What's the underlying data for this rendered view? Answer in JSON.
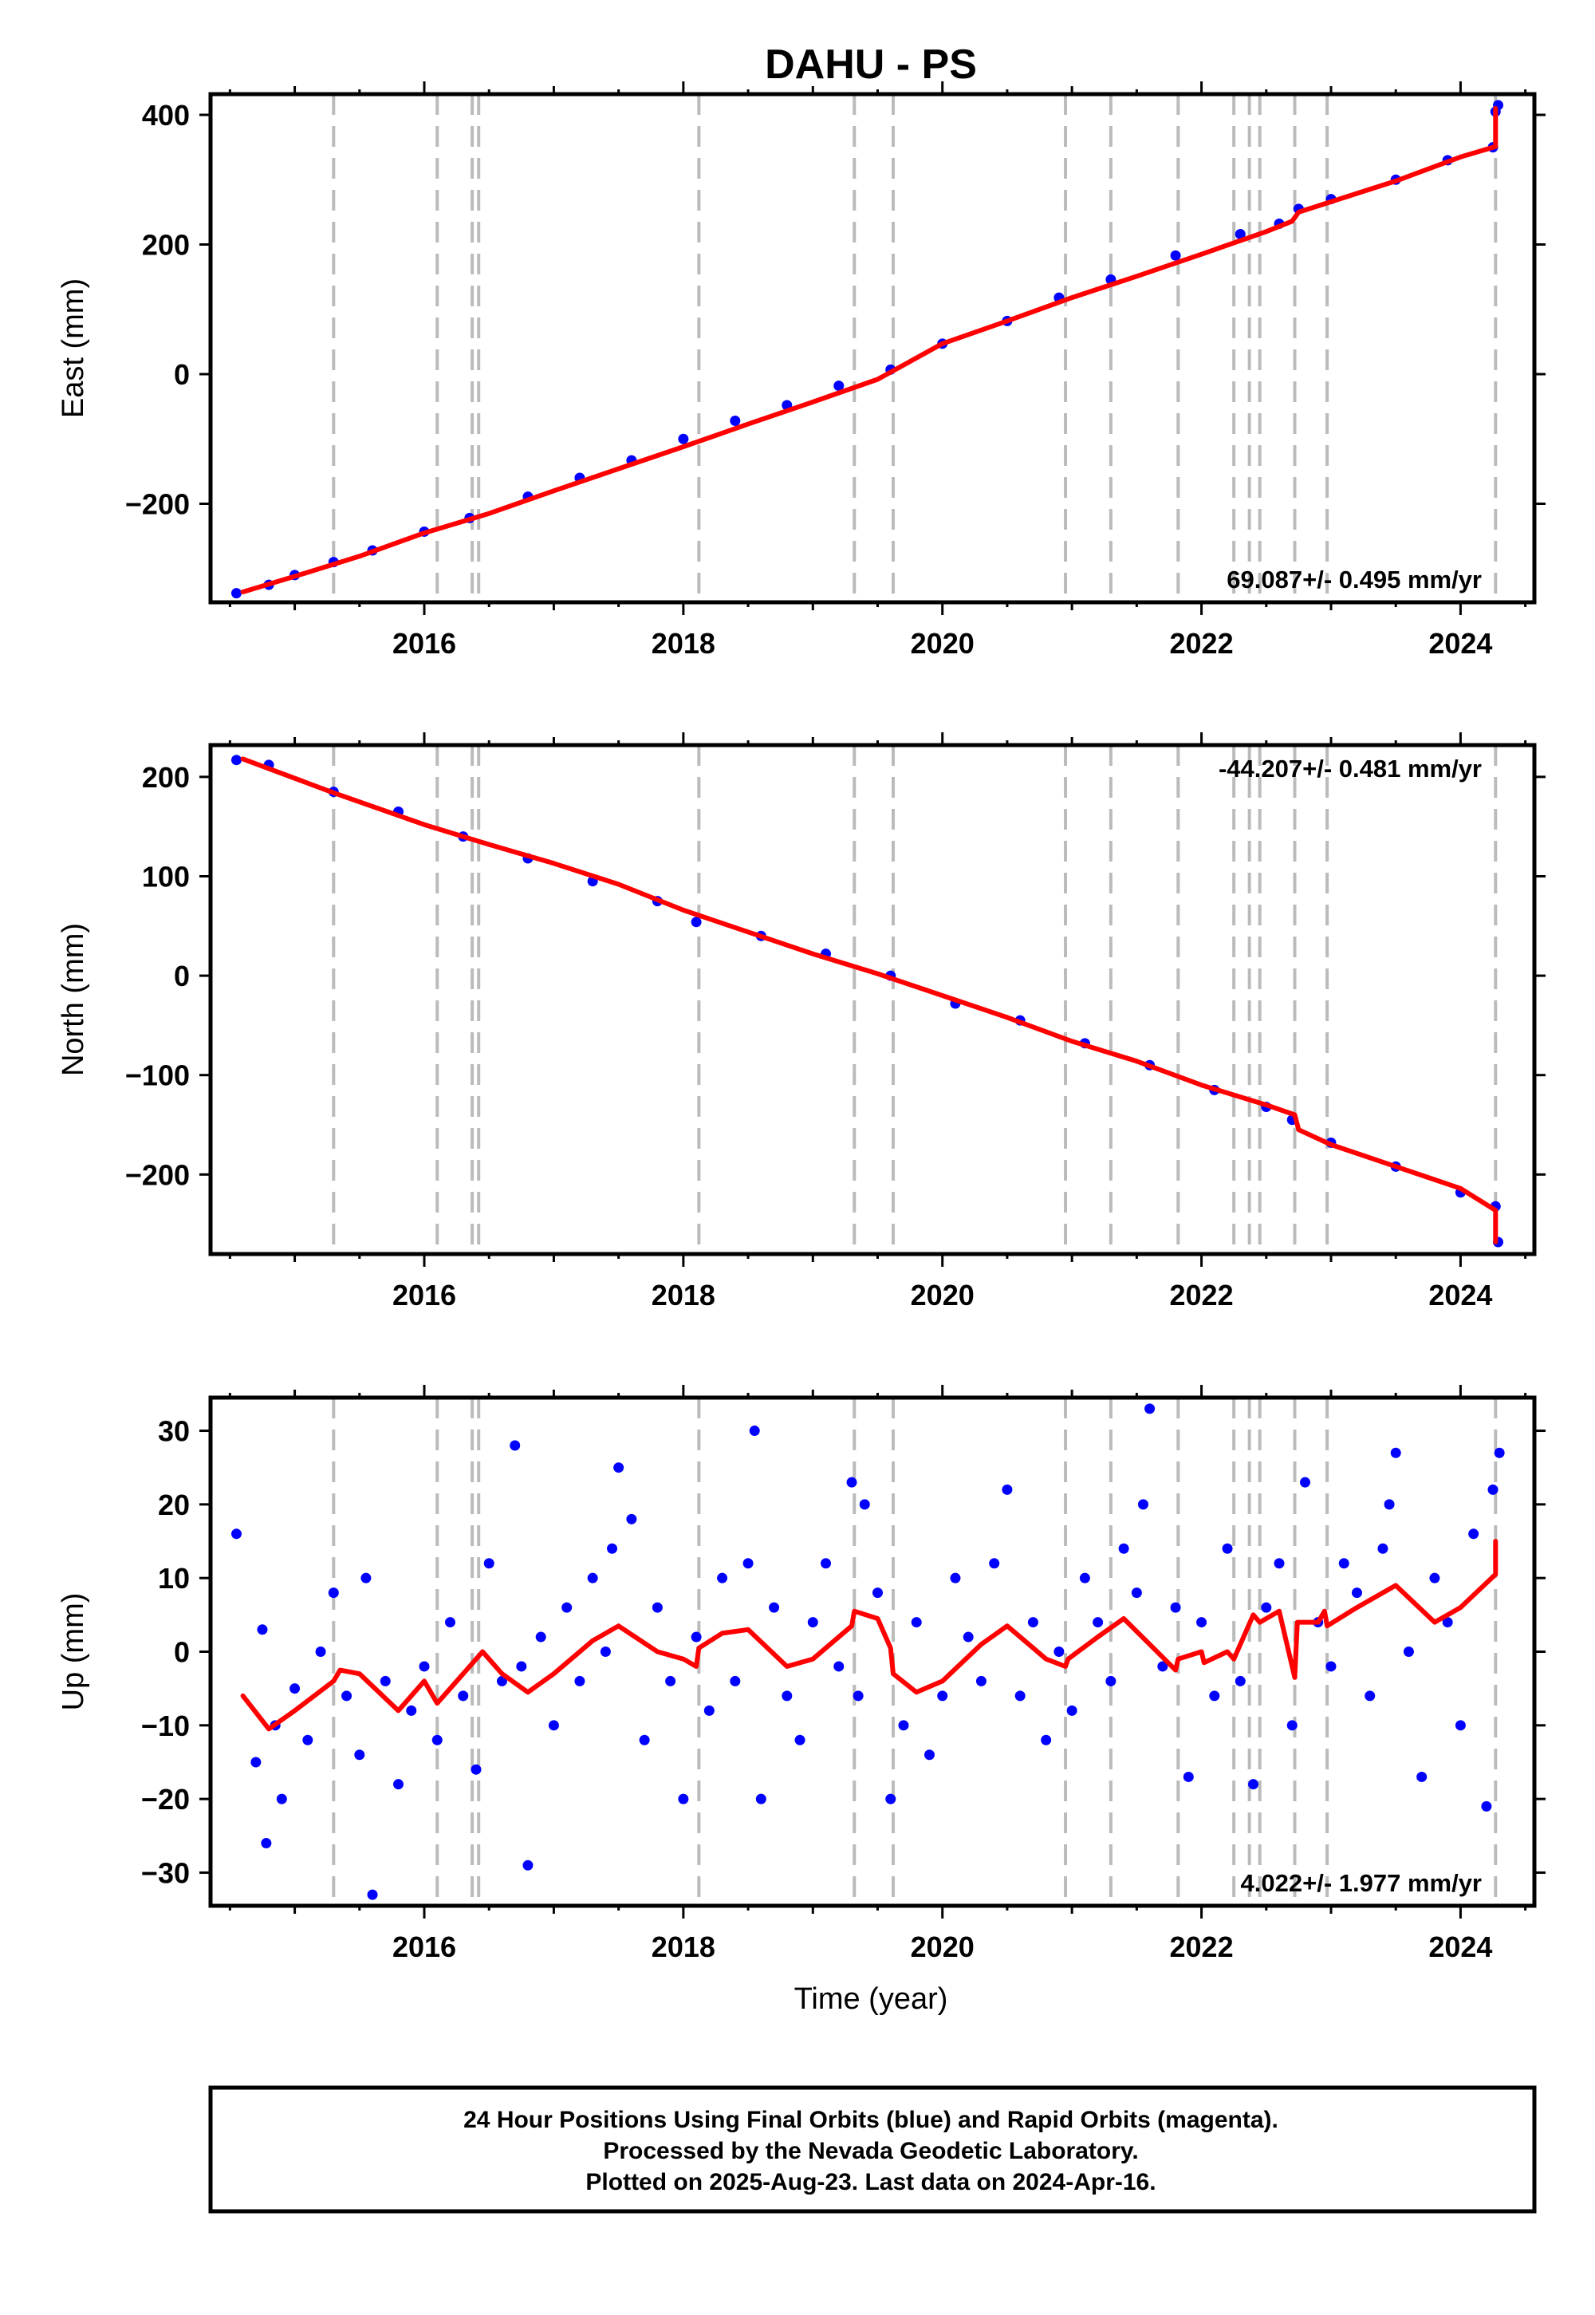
{
  "chart_data": [
    {
      "type": "scatter",
      "panel": "east",
      "title": "DAHU - PS",
      "ylabel": "East (mm)",
      "xlim": [
        2014.35,
        2024.57
      ],
      "ylim": [
        -352,
        432
      ],
      "x_ticks": [
        2016,
        2018,
        2020,
        2022,
        2024
      ],
      "y_ticks": [
        -200,
        0,
        200,
        400
      ],
      "grid": false,
      "rate_label": "69.087+/- 0.495 mm/yr",
      "rate_position": "bottom-right",
      "series": [
        {
          "name": "24 Hour Positions (Final Orbits)",
          "color": "#0000ff",
          "style": "points",
          "x": [
            2014.55,
            2014.8,
            2015.0,
            2015.3,
            2015.6,
            2016.0,
            2016.35,
            2016.8,
            2017.2,
            2017.6,
            2018.0,
            2018.4,
            2018.8,
            2019.2,
            2019.6,
            2020.0,
            2020.5,
            2020.9,
            2021.3,
            2021.8,
            2022.3,
            2022.6,
            2022.75,
            2023.0,
            2023.5,
            2023.9,
            2024.25,
            2024.27,
            2024.29
          ],
          "y": [
            -338,
            -325,
            -310,
            -290,
            -272,
            -243,
            -222,
            -189,
            -160,
            -133,
            -100,
            -72,
            -48,
            -18,
            7,
            47,
            82,
            118,
            146,
            183,
            216,
            232,
            255,
            270,
            300,
            330,
            350,
            405,
            415
          ]
        },
        {
          "name": "Model",
          "color": "#ff0000",
          "style": "line",
          "x": [
            2014.6,
            2015.0,
            2015.5,
            2016.0,
            2016.5,
            2017.0,
            2017.5,
            2018.0,
            2018.5,
            2019.0,
            2019.5,
            2020.0,
            2020.5,
            2021.0,
            2021.5,
            2022.0,
            2022.5,
            2022.7,
            2022.75,
            2023.0,
            2023.5,
            2024.0,
            2024.27,
            2024.27
          ],
          "y": [
            -336,
            -312,
            -281,
            -245,
            -215,
            -180,
            -146,
            -112,
            -77,
            -43,
            -8,
            47,
            82,
            118,
            151,
            185,
            220,
            236,
            250,
            266,
            298,
            335,
            351,
            410
          ]
        }
      ]
    },
    {
      "type": "scatter",
      "panel": "north",
      "ylabel": "North (mm)",
      "xlim": [
        2014.35,
        2024.57
      ],
      "ylim": [
        -280,
        232
      ],
      "x_ticks": [
        2016,
        2018,
        2020,
        2022,
        2024
      ],
      "y_ticks": [
        -200,
        -100,
        0,
        100,
        200
      ],
      "grid": false,
      "rate_label": "-44.207+/- 0.481 mm/yr",
      "rate_position": "top-right",
      "series": [
        {
          "name": "24 Hour Positions (Final Orbits)",
          "color": "#0000ff",
          "style": "points",
          "x": [
            2014.55,
            2014.8,
            2015.3,
            2015.8,
            2016.3,
            2016.8,
            2017.3,
            2017.8,
            2018.1,
            2018.6,
            2019.1,
            2019.6,
            2020.1,
            2020.6,
            2021.1,
            2021.6,
            2022.1,
            2022.5,
            2022.7,
            2023.0,
            2023.5,
            2024.0,
            2024.27,
            2024.29
          ],
          "y": [
            217,
            212,
            185,
            165,
            140,
            118,
            95,
            75,
            54,
            40,
            22,
            0,
            -28,
            -45,
            -68,
            -90,
            -115,
            -132,
            -145,
            -168,
            -192,
            -218,
            -232,
            -268
          ]
        },
        {
          "name": "Model",
          "color": "#ff0000",
          "style": "line",
          "x": [
            2014.6,
            2015.3,
            2016.0,
            2016.5,
            2017.0,
            2017.5,
            2018.0,
            2018.5,
            2019.0,
            2019.5,
            2020.0,
            2020.5,
            2021.0,
            2021.5,
            2022.0,
            2022.5,
            2022.72,
            2022.75,
            2023.0,
            2023.5,
            2024.0,
            2024.27,
            2024.27
          ],
          "y": [
            218,
            184,
            152,
            132,
            113,
            92,
            66,
            44,
            22,
            2,
            -20,
            -42,
            -66,
            -86,
            -110,
            -130,
            -140,
            -155,
            -170,
            -192,
            -214,
            -236,
            -268
          ]
        }
      ]
    },
    {
      "type": "scatter",
      "panel": "up",
      "ylabel": "Up (mm)",
      "xlabel": "Time (year)",
      "xlim": [
        2014.35,
        2024.57
      ],
      "ylim": [
        -34.5,
        34.5
      ],
      "x_ticks": [
        2016,
        2018,
        2020,
        2022,
        2024
      ],
      "y_ticks": [
        -30,
        -20,
        -10,
        0,
        10,
        20,
        30
      ],
      "grid": false,
      "rate_label": "4.022+/- 1.977 mm/yr",
      "rate_position": "bottom-right",
      "series": [
        {
          "name": "24 Hour Positions (Final Orbits)",
          "color": "#0000ff",
          "style": "points",
          "x": [
            2014.55,
            2014.7,
            2014.75,
            2014.78,
            2014.85,
            2014.9,
            2015.0,
            2015.1,
            2015.2,
            2015.3,
            2015.4,
            2015.5,
            2015.55,
            2015.6,
            2015.7,
            2015.8,
            2015.9,
            2016.0,
            2016.1,
            2016.2,
            2016.3,
            2016.4,
            2016.5,
            2016.6,
            2016.7,
            2016.75,
            2016.8,
            2016.9,
            2017.0,
            2017.1,
            2017.2,
            2017.3,
            2017.4,
            2017.45,
            2017.5,
            2017.6,
            2017.7,
            2017.8,
            2017.9,
            2018.0,
            2018.1,
            2018.2,
            2018.3,
            2018.4,
            2018.5,
            2018.55,
            2018.6,
            2018.7,
            2018.8,
            2018.9,
            2019.0,
            2019.1,
            2019.2,
            2019.3,
            2019.35,
            2019.4,
            2019.5,
            2019.6,
            2019.7,
            2019.8,
            2019.9,
            2020.0,
            2020.1,
            2020.2,
            2020.3,
            2020.4,
            2020.5,
            2020.6,
            2020.7,
            2020.8,
            2020.9,
            2021.0,
            2021.1,
            2021.2,
            2021.3,
            2021.4,
            2021.5,
            2021.55,
            2021.6,
            2021.7,
            2021.8,
            2021.9,
            2022.0,
            2022.1,
            2022.2,
            2022.3,
            2022.4,
            2022.5,
            2022.6,
            2022.7,
            2022.8,
            2022.9,
            2023.0,
            2023.1,
            2023.2,
            2023.3,
            2023.4,
            2023.45,
            2023.5,
            2023.6,
            2023.7,
            2023.8,
            2023.9,
            2024.0,
            2024.1,
            2024.2,
            2024.25,
            2024.3
          ],
          "y": [
            16,
            -15,
            3,
            -26,
            -10,
            -20,
            -5,
            -12,
            0,
            8,
            -6,
            -14,
            10,
            -33,
            -4,
            -18,
            -8,
            -2,
            -12,
            4,
            -6,
            -16,
            12,
            -4,
            28,
            -2,
            -29,
            2,
            -10,
            6,
            -4,
            10,
            0,
            14,
            25,
            18,
            -12,
            6,
            -4,
            -20,
            2,
            -8,
            10,
            -4,
            12,
            30,
            -20,
            6,
            -6,
            -12,
            4,
            12,
            -2,
            23,
            -6,
            20,
            8,
            -20,
            -10,
            4,
            -14,
            -6,
            10,
            2,
            -4,
            12,
            22,
            -6,
            4,
            -12,
            0,
            -8,
            10,
            4,
            -4,
            14,
            8,
            20,
            33,
            -2,
            6,
            -17,
            4,
            -6,
            14,
            -4,
            -18,
            6,
            12,
            -10,
            23,
            4,
            -2,
            12,
            8,
            -6,
            14,
            20,
            27,
            0,
            -17,
            10,
            4,
            -10,
            16,
            -21,
            22,
            27
          ]
        },
        {
          "name": "Model",
          "color": "#ff0000",
          "style": "line",
          "x": [
            2014.6,
            2014.8,
            2015.0,
            2015.3,
            2015.35,
            2015.5,
            2015.8,
            2016.0,
            2016.1,
            2016.35,
            2016.45,
            2016.6,
            2016.8,
            2017.0,
            2017.3,
            2017.5,
            2017.8,
            2018.0,
            2018.1,
            2018.12,
            2018.3,
            2018.5,
            2018.8,
            2019.0,
            2019.3,
            2019.32,
            2019.5,
            2019.6,
            2019.62,
            2019.8,
            2020.0,
            2020.3,
            2020.5,
            2020.8,
            2020.95,
            2020.97,
            2021.2,
            2021.4,
            2021.6,
            2021.8,
            2021.82,
            2022.0,
            2022.02,
            2022.2,
            2022.25,
            2022.4,
            2022.45,
            2022.6,
            2022.72,
            2022.74,
            2022.9,
            2022.95,
            2022.97,
            2023.2,
            2023.5,
            2023.8,
            2024.0,
            2024.27,
            2024.27
          ],
          "y": [
            -6,
            -10.5,
            -8,
            -4,
            -2.5,
            -3,
            -8,
            -4,
            -7,
            -2,
            0,
            -3,
            -5.5,
            -3,
            1.5,
            3.5,
            0,
            -1,
            -2,
            0.5,
            2.5,
            3,
            -2,
            -1,
            3.5,
            5.5,
            4.5,
            0.5,
            -3,
            -5.5,
            -4,
            1,
            3.5,
            -1,
            -2,
            -1,
            2,
            4.5,
            1,
            -2.5,
            -1,
            0,
            -1.5,
            0,
            -1,
            5,
            4,
            5.5,
            -3.5,
            4,
            4,
            5.5,
            3.5,
            6,
            9,
            4,
            6,
            10.5,
            15
          ]
        }
      ]
    }
  ],
  "events": [
    2015.3,
    2016.1,
    2016.37,
    2016.42,
    2018.12,
    2019.32,
    2019.62,
    2020.95,
    2021.3,
    2021.82,
    2022.25,
    2022.37,
    2022.45,
    2022.72,
    2022.97,
    2024.27
  ],
  "footer": {
    "line1": "24 Hour Positions Using Final Orbits (blue) and Rapid Orbits (magenta).",
    "line2": "Processed by the Nevada Geodetic Laboratory.",
    "line3": "Plotted on 2025-Aug-23. Last data on 2024-Apr-16."
  },
  "colors": {
    "points": "#0000ff",
    "model": "#ff0000",
    "event_lines": "#bbbbbb",
    "frame": "#000000"
  }
}
